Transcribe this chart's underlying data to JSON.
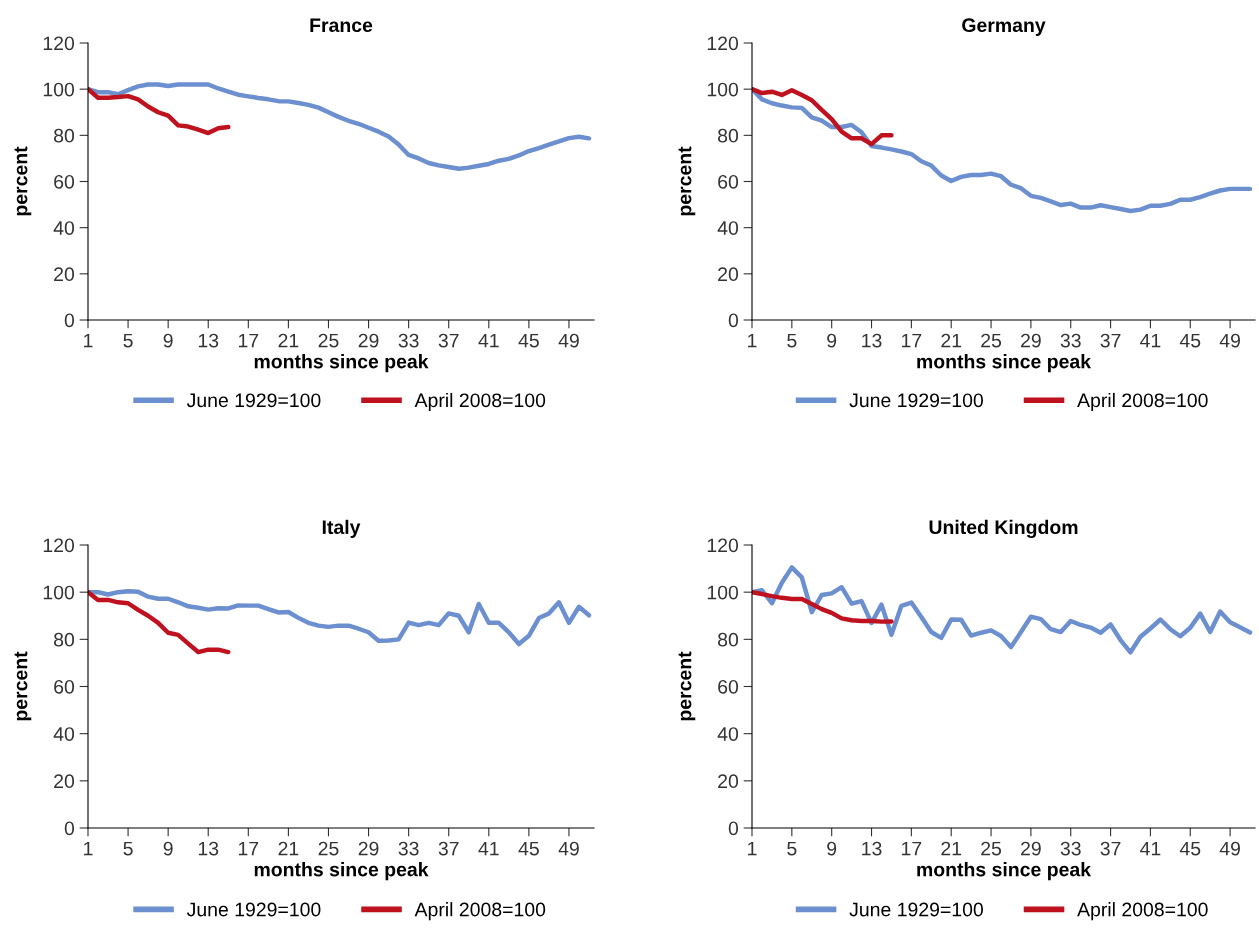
{
  "chart_data": [
    {
      "type": "line",
      "title": "France",
      "xlabel": "months since peak",
      "ylabel": "percent",
      "xlim": [
        1,
        51.5
      ],
      "xticks": [
        1,
        5,
        9,
        13,
        17,
        21,
        25,
        29,
        33,
        37,
        41,
        45,
        49
      ],
      "ylim": [
        0,
        120
      ],
      "yticks": [
        0,
        20,
        40,
        60,
        80,
        100,
        120
      ],
      "grid": false,
      "legend": "bottom",
      "marker": "none",
      "line_style": "solid",
      "x": [
        1,
        2,
        3,
        4,
        5,
        6,
        7,
        8,
        9,
        10,
        11,
        12,
        13,
        14,
        15,
        16,
        17,
        18,
        19,
        20,
        21,
        22,
        23,
        24,
        25,
        26,
        27,
        28,
        29,
        30,
        31,
        32,
        33,
        34,
        35,
        36,
        37,
        38,
        39,
        40,
        41,
        42,
        43,
        44,
        45,
        46,
        47,
        48,
        49,
        50,
        51
      ],
      "series": [
        {
          "name": "June 1929=100",
          "color": "#6b8fcf",
          "values": [
            100,
            98.7,
            98.7,
            97.8,
            99.6,
            101.2,
            102,
            102,
            101.4,
            102,
            102,
            102,
            102,
            100.3,
            98.9,
            97.6,
            96.9,
            96.2,
            95.6,
            94.8,
            94.7,
            94,
            93.2,
            92,
            90,
            88,
            86.3,
            85,
            83.3,
            81.6,
            79.5,
            76,
            71.5,
            70,
            68,
            67,
            66.3,
            65.5,
            66,
            66.8,
            67.6,
            69,
            69.8,
            71.3,
            73.2,
            74.5,
            76,
            77.4,
            78.8,
            79.4,
            78.7
          ]
        },
        {
          "name": "April 2008=100",
          "color": "#c0111f",
          "x": [
            1,
            2,
            3,
            4,
            5,
            6,
            7,
            8,
            9,
            10,
            11,
            12,
            13,
            14,
            15
          ],
          "values": [
            100,
            96.3,
            96.3,
            96.6,
            97,
            95.6,
            92.5,
            90,
            88.5,
            84.3,
            83.8,
            82.5,
            81,
            83.1,
            83.6
          ]
        }
      ]
    },
    {
      "type": "line",
      "title": "Germany",
      "xlabel": "months since peak",
      "ylabel": "percent",
      "xlim": [
        1,
        51.5
      ],
      "xticks": [
        1,
        5,
        9,
        13,
        17,
        21,
        25,
        29,
        33,
        37,
        41,
        45,
        49
      ],
      "ylim": [
        0,
        120
      ],
      "yticks": [
        0,
        20,
        40,
        60,
        80,
        100,
        120
      ],
      "grid": false,
      "legend": "bottom",
      "marker": "none",
      "line_style": "solid",
      "x": [
        1,
        2,
        3,
        4,
        5,
        6,
        7,
        8,
        9,
        10,
        11,
        12,
        13,
        14,
        15,
        16,
        17,
        18,
        19,
        20,
        21,
        22,
        23,
        24,
        25,
        26,
        27,
        28,
        29,
        30,
        31,
        32,
        33,
        34,
        35,
        36,
        37,
        38,
        39,
        40,
        41,
        42,
        43,
        44,
        45,
        46,
        47,
        48,
        49,
        50,
        51
      ],
      "series": [
        {
          "name": "June 1929=100",
          "color": "#6b8fcf",
          "values": [
            100,
            95.6,
            93.9,
            92.9,
            92.1,
            91.9,
            87.8,
            86.4,
            83.6,
            83.6,
            84.5,
            81.3,
            75.4,
            74.7,
            73.9,
            73,
            71.9,
            68.8,
            66.9,
            62.6,
            60.2,
            62,
            62.8,
            62.8,
            63.4,
            62.3,
            58.6,
            57.1,
            53.8,
            52.9,
            51.4,
            49.8,
            50.4,
            48.7,
            48.7,
            49.7,
            48.9,
            48.1,
            47.2,
            47.8,
            49.5,
            49.5,
            50.3,
            52.1,
            52.1,
            53.2,
            54.8,
            56.1,
            56.8,
            56.8,
            56.8
          ]
        },
        {
          "name": "April 2008=100",
          "color": "#c0111f",
          "x": [
            1,
            2,
            3,
            4,
            5,
            6,
            7,
            8,
            9,
            10,
            11,
            12,
            13,
            14,
            15
          ],
          "values": [
            100,
            98.3,
            98.9,
            97.5,
            99.5,
            97.5,
            95.2,
            91,
            87,
            81.6,
            78.7,
            78.7,
            76.2,
            80,
            80
          ]
        }
      ]
    },
    {
      "type": "line",
      "title": "Italy",
      "xlabel": "months since peak",
      "ylabel": "percent",
      "xlim": [
        1,
        51.5
      ],
      "xticks": [
        1,
        5,
        9,
        13,
        17,
        21,
        25,
        29,
        33,
        37,
        41,
        45,
        49
      ],
      "ylim": [
        0,
        120
      ],
      "yticks": [
        0,
        20,
        40,
        60,
        80,
        100,
        120
      ],
      "grid": false,
      "legend": "bottom",
      "marker": "none",
      "line_style": "solid",
      "x": [
        1,
        2,
        3,
        4,
        5,
        6,
        7,
        8,
        9,
        10,
        11,
        12,
        13,
        14,
        15,
        16,
        17,
        18,
        19,
        20,
        21,
        22,
        23,
        24,
        25,
        26,
        27,
        28,
        29,
        30,
        31,
        32,
        33,
        34,
        35,
        36,
        37,
        38,
        39,
        40,
        41,
        42,
        43,
        44,
        45,
        46,
        47,
        48,
        49,
        50,
        51
      ],
      "series": [
        {
          "name": "June 1929=100",
          "color": "#6b8fcf",
          "values": [
            100,
            100,
            99,
            100,
            100.4,
            100.2,
            98.1,
            97.2,
            97.2,
            95.7,
            94,
            93.4,
            92.6,
            93.2,
            93.1,
            94.4,
            94.3,
            94.3,
            92.8,
            91.4,
            91.6,
            89.1,
            87,
            85.8,
            85.3,
            85.8,
            85.8,
            84.5,
            83,
            79.4,
            79.5,
            80,
            87.1,
            86,
            87,
            86,
            91,
            90,
            83,
            95,
            87,
            87,
            83,
            78,
            81.5,
            89,
            91,
            95.7,
            87,
            93.8,
            90.2
          ]
        },
        {
          "name": "April 2008=100",
          "color": "#c0111f",
          "x": [
            1,
            2,
            3,
            4,
            5,
            6,
            7,
            8,
            9,
            10,
            11,
            12,
            13,
            14,
            15
          ],
          "values": [
            100,
            96.7,
            96.7,
            95.7,
            95.3,
            92.5,
            90,
            87,
            82.8,
            81.9,
            78.2,
            74.6,
            75.6,
            75.6,
            74.6
          ]
        }
      ]
    },
    {
      "type": "line",
      "title": "United Kingdom",
      "xlabel": "months since peak",
      "ylabel": "percent",
      "xlim": [
        1,
        51.5
      ],
      "xticks": [
        1,
        5,
        9,
        13,
        17,
        21,
        25,
        29,
        33,
        37,
        41,
        45,
        49
      ],
      "ylim": [
        0,
        120
      ],
      "yticks": [
        0,
        20,
        40,
        60,
        80,
        100,
        120
      ],
      "grid": false,
      "legend": "bottom",
      "marker": "none",
      "line_style": "solid",
      "x": [
        1,
        2,
        3,
        4,
        5,
        6,
        7,
        8,
        9,
        10,
        11,
        12,
        13,
        14,
        15,
        16,
        17,
        18,
        19,
        20,
        21,
        22,
        23,
        24,
        25,
        26,
        27,
        28,
        29,
        30,
        31,
        32,
        33,
        34,
        35,
        36,
        37,
        38,
        39,
        40,
        41,
        42,
        43,
        44,
        45,
        46,
        47,
        48,
        49,
        50,
        51
      ],
      "series": [
        {
          "name": "June 1929=100",
          "color": "#6b8fcf",
          "values": [
            100,
            100.8,
            95.3,
            104,
            110.5,
            106.3,
            91.5,
            98.8,
            99.5,
            102.1,
            95.1,
            96.2,
            86.9,
            94.7,
            81.9,
            94.2,
            95.6,
            89.5,
            83.1,
            80.6,
            88.4,
            88.3,
            81.6,
            82.8,
            83.8,
            81.4,
            76.7,
            83.1,
            89.6,
            88.6,
            84.3,
            83.1,
            87.8,
            86.1,
            85,
            82.8,
            86.3,
            79.7,
            74.5,
            81.1,
            84.6,
            88.4,
            84.3,
            81.3,
            84.9,
            90.9,
            83.1,
            91.8,
            87.2,
            85.1,
            82.9
          ]
        },
        {
          "name": "April 2008=100",
          "color": "#c0111f",
          "x": [
            1,
            2,
            3,
            4,
            5,
            6,
            7,
            8,
            9,
            10,
            11,
            12,
            13,
            14,
            15
          ],
          "values": [
            100,
            99.2,
            98.3,
            97.6,
            97.1,
            97.1,
            95,
            92.8,
            91.2,
            88.9,
            88.1,
            87.8,
            87.8,
            87.5,
            87.6
          ]
        }
      ]
    }
  ]
}
